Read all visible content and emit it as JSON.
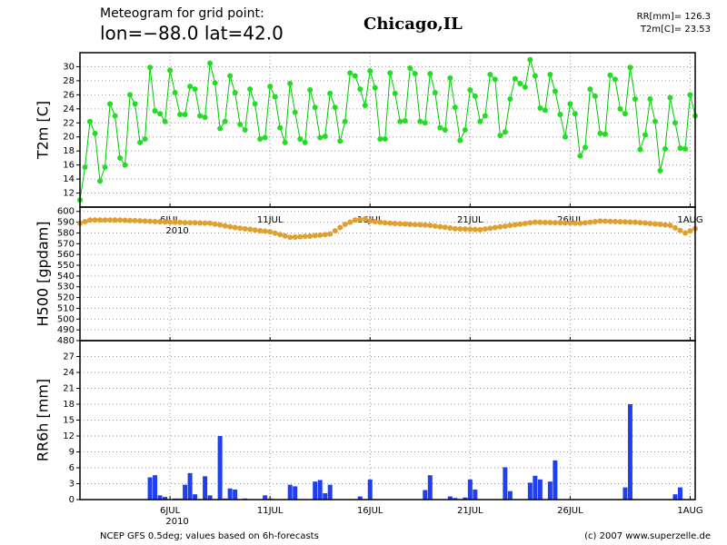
{
  "chart_data": {
    "title": "Meteogram for grid point:",
    "subtitle": "lon=−88.0  lat=42.0",
    "location": "Chicago,IL",
    "summary": [
      "RR[mm]= 126.3",
      "T2m[C]= 23.53"
    ],
    "footer_left": "NCEP GFS 0.5deg; values based on 6h-forecasts",
    "footer_right": "(c) 2007 www.superzelle.de",
    "year_label": "2010",
    "grid": true,
    "x": [
      1.5,
      1.75,
      2,
      2.25,
      2.5,
      2.75,
      3,
      3.25,
      3.5,
      3.75,
      4,
      4.25,
      4.5,
      4.75,
      5,
      5.25,
      5.5,
      5.75,
      6,
      6.25,
      6.5,
      6.75,
      7,
      7.25,
      7.5,
      7.75,
      8,
      8.25,
      8.5,
      8.75,
      9,
      9.25,
      9.5,
      9.75,
      10,
      10.25,
      10.5,
      10.75,
      11,
      11.25,
      11.5,
      11.75,
      12,
      12.25,
      12.5,
      12.75,
      13,
      13.25,
      13.5,
      13.75,
      14,
      14.25,
      14.5,
      14.75,
      15,
      15.25,
      15.5,
      15.75,
      16,
      16.25,
      16.5,
      16.75,
      17,
      17.25,
      17.5,
      17.75,
      18,
      18.25,
      18.5,
      18.75,
      19,
      19.25,
      19.5,
      19.75,
      20,
      20.25,
      20.5,
      20.75,
      21,
      21.25,
      21.5,
      21.75,
      22,
      22.25,
      22.5,
      22.75,
      23,
      23.25,
      23.5,
      23.75,
      24,
      24.25,
      24.5,
      24.75,
      25,
      25.25,
      25.5,
      25.75,
      26,
      26.25,
      26.5,
      26.75,
      27,
      27.25,
      27.5,
      27.75,
      28,
      28.25,
      28.5,
      28.75,
      29,
      29.25,
      29.5,
      29.75,
      30,
      30.25,
      30.5,
      30.75,
      31,
      31.25,
      31.5,
      31.75,
      32,
      32.25
    ],
    "xlim": [
      1.5,
      32.25
    ],
    "xticks": [
      {
        "value": 6,
        "label": "6JUL"
      },
      {
        "value": 11,
        "label": "11JUL"
      },
      {
        "value": 16,
        "label": "16JUL"
      },
      {
        "value": 21,
        "label": "21JUL"
      },
      {
        "value": 26,
        "label": "26JUL"
      },
      {
        "value": 32,
        "label": "1AUG"
      }
    ],
    "panels": [
      {
        "type": "line",
        "ylabel": "T2m [C]",
        "color": "#00c800",
        "ylim": [
          10,
          32
        ],
        "yticks": [
          12,
          14,
          16,
          18,
          20,
          22,
          24,
          26,
          28,
          30
        ],
        "values": [
          11,
          15.7,
          22.2,
          20.5,
          13.7,
          15.7,
          24.7,
          23,
          17,
          16,
          26,
          24.7,
          19.2,
          19.7,
          29.9,
          23.7,
          23.3,
          22.2,
          29.5,
          26.3,
          23.2,
          23.2,
          27.2,
          26.8,
          23,
          22.8,
          30.5,
          27.7,
          21.2,
          22.2,
          28.7,
          26.3,
          21.8,
          21,
          26.8,
          24.7,
          19.7,
          19.9,
          27.2,
          25.7,
          21.3,
          19.2,
          27.6,
          23.5,
          19.7,
          19.2,
          26.7,
          24.2,
          19.9,
          20.1,
          26.2,
          24.2,
          19.4,
          22.2,
          29.1,
          28.7,
          26.8,
          24.5,
          29.4,
          27,
          19.7,
          19.7,
          29.1,
          26.2,
          22.2,
          22.3,
          29.8,
          29,
          22.2,
          22,
          29,
          26.3,
          21.3,
          21,
          28.4,
          24.2,
          19.5,
          21,
          26.7,
          25.8,
          22.2,
          23,
          28.9,
          28.2,
          20.2,
          20.7,
          25.4,
          28.3,
          27.6,
          27.1,
          31,
          28.7,
          24.1,
          23.8,
          28.9,
          26.5,
          23.2,
          20,
          24.7,
          23.3,
          17.3,
          18.5,
          26.8,
          25.8,
          20.5,
          20.4,
          28.8,
          28.2,
          24,
          23.3,
          29.9,
          25.4,
          18.2,
          20.3,
          25.4,
          22.2,
          15.2,
          18.3,
          25.6,
          22,
          18.4,
          18.3,
          26,
          23
        ]
      },
      {
        "type": "dots",
        "ylabel": "H500 [gpdam]",
        "color": "#e0a030",
        "ylim": [
          480,
          604
        ],
        "yticks": [
          480,
          490,
          500,
          510,
          520,
          530,
          540,
          550,
          560,
          570,
          580,
          590,
          600
        ],
        "values": [
          589,
          590.5,
          592,
          592,
          592,
          592,
          592,
          592,
          592,
          591.8,
          591.6,
          591.4,
          591.2,
          591,
          590.8,
          590.6,
          590.4,
          590.2,
          590,
          589.9,
          589.8,
          589.6,
          589.5,
          589.4,
          589.2,
          589.1,
          589,
          588.2,
          587.4,
          586.6,
          585.8,
          585,
          584.4,
          583.9,
          583.3,
          582.7,
          582.1,
          581.6,
          581,
          579.8,
          578.5,
          577.2,
          576,
          576.2,
          576.5,
          576.8,
          577,
          577.5,
          578,
          578.5,
          579,
          582,
          585,
          588,
          590,
          592,
          592.5,
          593,
          591,
          590.5,
          590,
          589.5,
          589,
          588.8,
          588.5,
          588.3,
          588,
          587.8,
          587.5,
          587.3,
          587,
          586.4,
          585.8,
          585.2,
          584.6,
          584,
          583.8,
          583.6,
          583.4,
          583.2,
          583,
          583.7,
          584.3,
          585,
          585.7,
          586.3,
          587,
          587.6,
          588.2,
          588.8,
          589.4,
          590,
          589.9,
          589.8,
          589.7,
          589.6,
          589.4,
          589.3,
          589.2,
          589.1,
          589,
          589.5,
          590,
          590.5,
          591,
          590.9,
          590.7,
          590.6,
          590.4,
          590.3,
          590.1,
          590,
          589.6,
          589.2,
          588.8,
          588.4,
          588,
          587.5,
          587,
          584.7,
          582.3,
          580,
          582,
          584
        ]
      },
      {
        "type": "bar",
        "ylabel": "RR6h [mm]",
        "color": "#2040f0",
        "ylim": [
          0,
          30
        ],
        "yticks": [
          0,
          3,
          6,
          9,
          12,
          15,
          18,
          21,
          24,
          27
        ],
        "values": [
          0,
          0,
          0,
          0,
          0,
          0,
          0,
          0,
          0,
          0,
          0,
          0,
          0,
          0,
          4.2,
          4.6,
          0.8,
          0.5,
          0,
          0.2,
          0.2,
          2.8,
          5,
          1,
          0,
          4.4,
          0.8,
          0,
          12,
          0.2,
          2.1,
          1.9,
          0,
          0.2,
          0,
          0,
          0,
          0.8,
          0.2,
          0,
          0,
          0,
          2.8,
          2.5,
          0,
          0,
          0,
          3.4,
          3.7,
          1.2,
          2.8,
          0,
          0,
          0,
          0,
          0,
          0.6,
          0,
          3.8,
          0,
          0,
          0,
          0,
          0,
          0,
          0,
          0,
          0,
          0,
          1.8,
          4.6,
          0,
          0,
          0,
          0.6,
          0.3,
          0,
          0.4,
          3.8,
          1.9,
          0,
          0,
          0,
          0,
          0,
          6.1,
          1.6,
          0,
          0,
          0,
          3.2,
          4.5,
          3.8,
          0,
          3.4,
          7.4,
          0,
          0,
          0,
          0,
          0,
          0,
          0,
          0,
          0,
          0,
          0,
          0,
          0,
          2.3,
          18,
          0,
          0,
          0,
          0,
          0,
          0,
          0,
          0,
          1,
          2.3,
          0,
          0,
          0
        ]
      }
    ]
  }
}
